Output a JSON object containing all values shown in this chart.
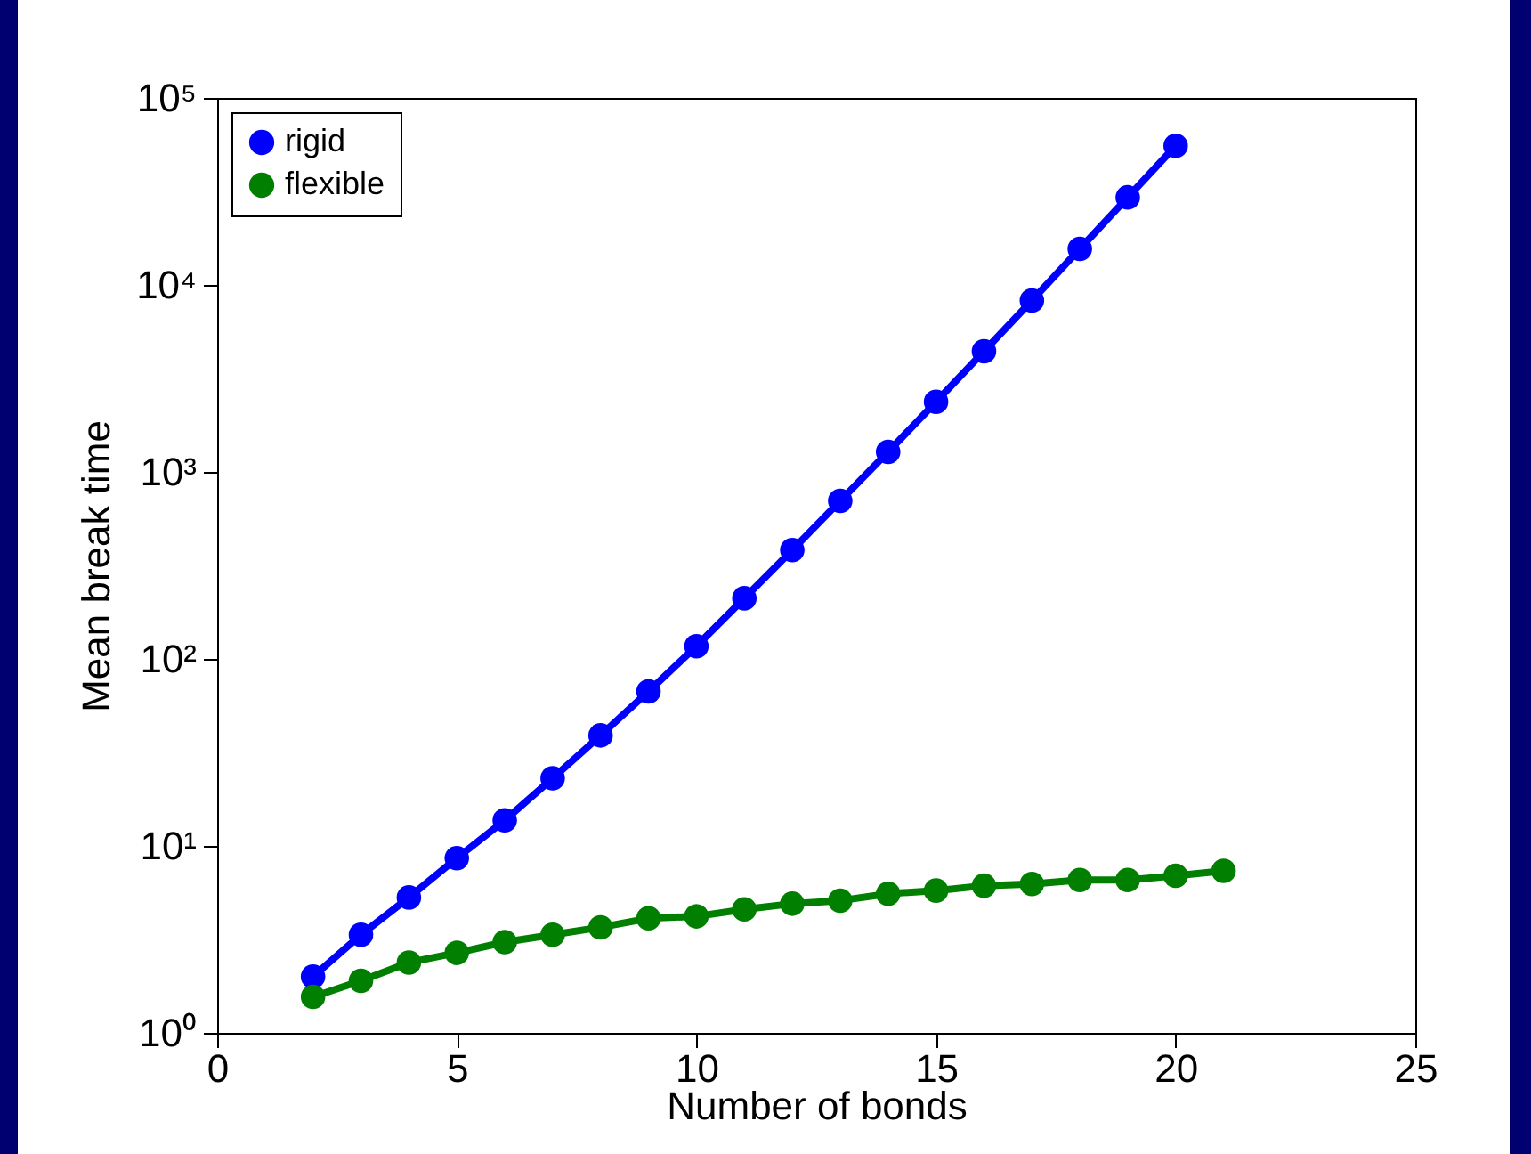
{
  "chart_data": {
    "type": "line",
    "xlabel": "Number of bonds",
    "ylabel": "Mean break time",
    "xlim": [
      0,
      25
    ],
    "xticks": [
      0,
      5,
      10,
      15,
      20,
      25
    ],
    "ylim": [
      1,
      100000
    ],
    "yticks": [
      {
        "value": 1,
        "label": "10⁰"
      },
      {
        "value": 10,
        "label": "10¹"
      },
      {
        "value": 100,
        "label": "10²"
      },
      {
        "value": 1000,
        "label": "10³"
      },
      {
        "value": 10000,
        "label": "10⁴"
      },
      {
        "value": 100000,
        "label": "10⁵"
      }
    ],
    "log": "y",
    "legend": "top left",
    "marker": "circle",
    "line_style": "solid",
    "series": [
      {
        "name": "rigid",
        "color": "#0000ff",
        "x": [
          2,
          3,
          4,
          5,
          6,
          7,
          8,
          9,
          10,
          11,
          12,
          13,
          14,
          15,
          16,
          17,
          18,
          19,
          20
        ],
        "values": [
          2,
          3.35,
          5.3,
          8.6,
          13.7,
          23,
          39,
          67,
          117,
          211,
          382,
          700,
          1280,
          2370,
          4420,
          8260,
          15600,
          29400,
          55500
        ]
      },
      {
        "name": "flexible",
        "color": "#007f00",
        "x": [
          2,
          3,
          4,
          5,
          6,
          7,
          8,
          9,
          10,
          11,
          12,
          13,
          14,
          15,
          16,
          17,
          18,
          19,
          20,
          21
        ],
        "values": [
          1.56,
          1.9,
          2.38,
          2.68,
          3.06,
          3.35,
          3.67,
          4.1,
          4.2,
          4.58,
          4.91,
          5.1,
          5.55,
          5.77,
          6.13,
          6.26,
          6.58,
          6.58,
          6.92,
          7.36
        ]
      }
    ]
  }
}
